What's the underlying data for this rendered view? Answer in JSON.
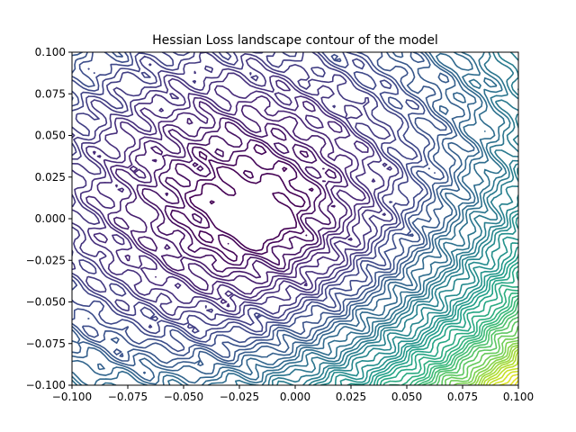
{
  "chart_data": {
    "type": "contour",
    "title": "Hessian Loss landscape contour of the model",
    "xlabel": "",
    "ylabel": "",
    "xlim": [
      -0.1,
      0.1
    ],
    "ylim": [
      -0.1,
      0.1
    ],
    "x_ticks": [
      "−0.100",
      "−0.075",
      "−0.050",
      "−0.025",
      "0.000",
      "0.025",
      "0.050",
      "0.075",
      "0.100"
    ],
    "y_ticks": [
      "−0.100",
      "−0.075",
      "−0.050",
      "−0.025",
      "0.000",
      "0.025",
      "0.050",
      "0.075",
      "0.100"
    ],
    "x_tick_values": [
      -0.1,
      -0.075,
      -0.05,
      -0.025,
      0,
      0.025,
      0.05,
      0.075,
      0.1
    ],
    "y_tick_values": [
      -0.1,
      -0.075,
      -0.05,
      -0.025,
      0,
      0.025,
      0.05,
      0.075,
      0.1
    ],
    "grid": false,
    "legend": false,
    "colormap": "viridis",
    "colormap_stops": [
      "#440154",
      "#482878",
      "#3e4989",
      "#31688e",
      "#26828e",
      "#1f9e89",
      "#35b779",
      "#6ece58",
      "#b5de2b",
      "#fde725"
    ],
    "minimum_location": [
      -0.015,
      0.0
    ],
    "num_levels": 60
  }
}
